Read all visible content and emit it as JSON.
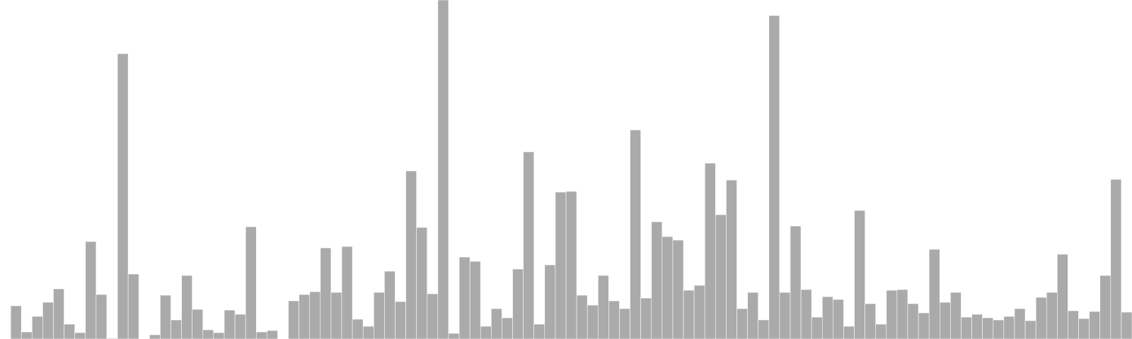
{
  "chart_data": {
    "type": "bar",
    "title": "",
    "xlabel": "",
    "ylabel": "",
    "ylim": [
      0,
      480
    ],
    "grid": false,
    "legend": "none",
    "bar_color": "#aaaaaa",
    "values": [
      0,
      47,
      10,
      32,
      52,
      71,
      21,
      9,
      138,
      63,
      1,
      404,
      92,
      0,
      6,
      62,
      27,
      90,
      42,
      13,
      9,
      41,
      35,
      159,
      10,
      12,
      0,
      54,
      63,
      67,
      129,
      66,
      131,
      28,
      18,
      66,
      96,
      53,
      238,
      158,
      64,
      480,
      8,
      116,
      110,
      18,
      43,
      30,
      99,
      265,
      21,
      105,
      208,
      209,
      62,
      48,
      90,
      54,
      43,
      296,
      58,
      166,
      145,
      140,
      69,
      76,
      249,
      176,
      225,
      43,
      66,
      27,
      458,
      66,
      160,
      70,
      31,
      60,
      56,
      18,
      182,
      50,
      21,
      69,
      70,
      50,
      37,
      127,
      52,
      66,
      31,
      35,
      30,
      27,
      32,
      43,
      26,
      59,
      66,
      120,
      40,
      29,
      39,
      90,
      226,
      38
    ]
  }
}
